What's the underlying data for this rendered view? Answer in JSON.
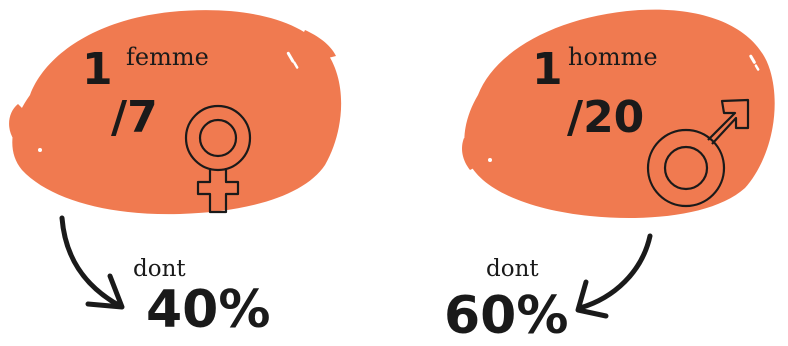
{
  "colors": {
    "blob": "#F07A50",
    "ink": "#1a1a1a"
  },
  "left": {
    "numerator": "1",
    "label": "femme",
    "ratio": "/7",
    "icon": "female-symbol-icon",
    "dont": "dont",
    "percent": "40%"
  },
  "right": {
    "numerator": "1",
    "label": "homme",
    "ratio": "/20",
    "icon": "male-symbol-icon",
    "dont": "dont",
    "percent": "60%"
  }
}
